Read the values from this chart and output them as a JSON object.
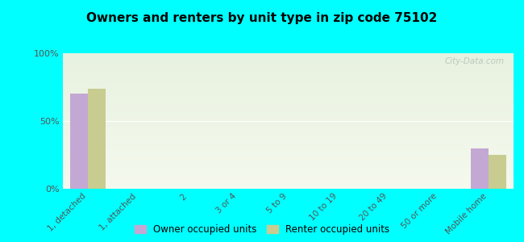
{
  "title": "Owners and renters by unit type in zip code 75102",
  "categories": [
    "1, detached",
    "1, attached",
    "2",
    "3 or 4",
    "5 to 9",
    "10 to 19",
    "20 to 49",
    "50 or more",
    "Mobile home"
  ],
  "owner_values": [
    70,
    0,
    0,
    0,
    0,
    0,
    0,
    0,
    30
  ],
  "renter_values": [
    74,
    0,
    0,
    0,
    0,
    0,
    0,
    0,
    25
  ],
  "owner_color": "#c4a8d4",
  "renter_color": "#c8cc90",
  "background_color": "#00ffff",
  "ylim": [
    0,
    100
  ],
  "bar_width": 0.35,
  "legend_owner": "Owner occupied units",
  "legend_renter": "Renter occupied units",
  "watermark": "City-Data.com",
  "grad_top": "#ddeedd",
  "grad_bottom": "#f0f5e0"
}
